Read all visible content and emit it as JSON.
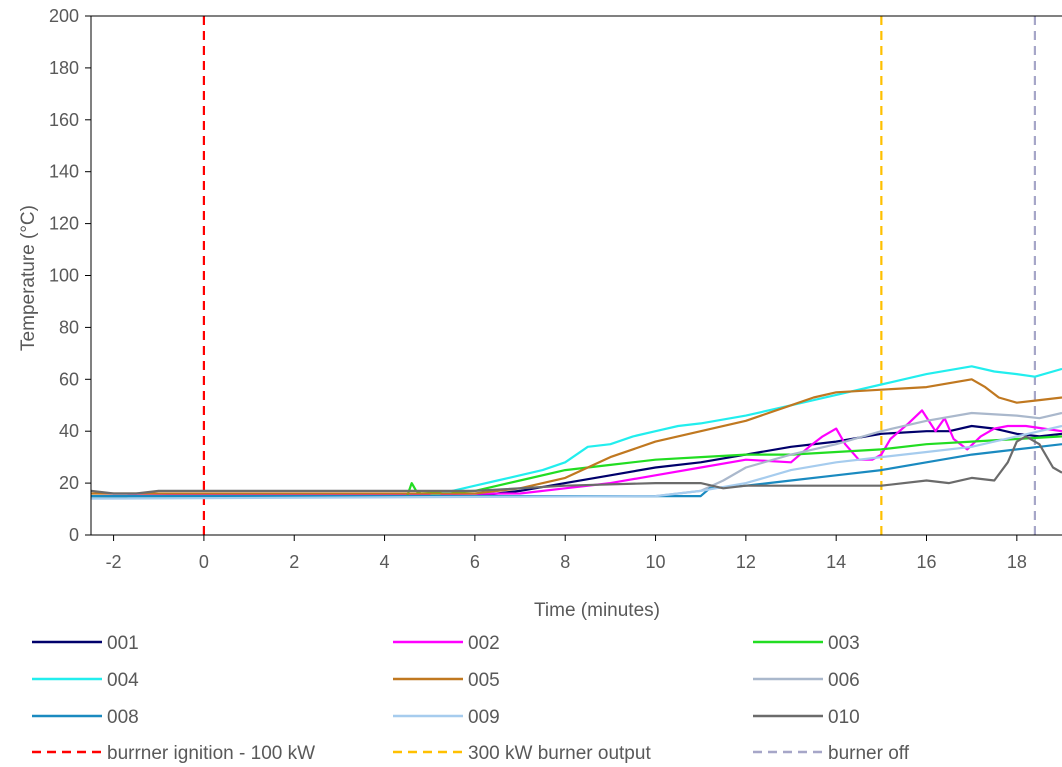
{
  "chart_data": {
    "type": "line",
    "xlabel": "Time (minutes)",
    "ylabel": "Temperature (°C)",
    "xlim": [
      -2.5,
      19
    ],
    "ylim": [
      0,
      200
    ],
    "x_ticks": [
      "-2",
      "0",
      "2",
      "4",
      "6",
      "8",
      "10",
      "12",
      "14",
      "16",
      "18"
    ],
    "x_tick_values": [
      -2,
      0,
      2,
      4,
      6,
      8,
      10,
      12,
      14,
      16,
      18
    ],
    "y_ticks": [
      "0",
      "20",
      "40",
      "60",
      "80",
      "100",
      "120",
      "140",
      "160",
      "180",
      "200"
    ],
    "y_tick_values": [
      0,
      20,
      40,
      60,
      80,
      100,
      120,
      140,
      160,
      180,
      200
    ],
    "grid": false,
    "legend_position": "bottom",
    "series": [
      {
        "name": "001",
        "color": "#00006B",
        "x": [
          -2.5,
          6,
          7,
          8,
          9,
          10,
          11,
          12,
          13,
          14,
          15,
          16,
          16.5,
          17,
          17.5,
          18,
          18.5,
          19
        ],
        "y": [
          15,
          15,
          17,
          20,
          23,
          26,
          28,
          31,
          34,
          36,
          39,
          40,
          40,
          42,
          41,
          39,
          38,
          39
        ]
      },
      {
        "name": "002",
        "color": "#FF00FF",
        "x": [
          -2.5,
          7,
          8,
          9,
          10,
          11,
          12,
          13,
          13.4,
          13.7,
          14,
          14.2,
          14.5,
          14.8,
          15,
          15.2,
          15.4,
          15.6,
          15.9,
          16.2,
          16.4,
          16.6,
          16.9,
          17.2,
          17.5,
          17.8,
          18.2,
          18.6,
          19
        ],
        "y": [
          15,
          16,
          18,
          20,
          23,
          26,
          29,
          28,
          34,
          38,
          41,
          35,
          29,
          29,
          31,
          37,
          40,
          43,
          48,
          40,
          45,
          37,
          33,
          38,
          41,
          42,
          42,
          41,
          40
        ]
      },
      {
        "name": "003",
        "color": "#22DD22",
        "x": [
          -2.5,
          4.5,
          4.6,
          4.7,
          4.8,
          6,
          7,
          8,
          9,
          10,
          11,
          12,
          13,
          14,
          15,
          16,
          17,
          18,
          19
        ],
        "y": [
          15,
          15,
          20,
          17,
          16,
          17,
          21,
          25,
          27,
          29,
          30,
          31,
          31,
          32,
          33,
          35,
          36,
          37,
          38
        ]
      },
      {
        "name": "004",
        "color": "#22EEEE",
        "x": [
          -2.5,
          5,
          5.5,
          6,
          6.5,
          7,
          7.5,
          8,
          8.5,
          9,
          9.5,
          10,
          10.5,
          11,
          12,
          13,
          14,
          15,
          16,
          17,
          17.5,
          18,
          18.4,
          19
        ],
        "y": [
          15,
          15,
          17,
          19,
          21,
          23,
          25,
          28,
          34,
          35,
          38,
          40,
          42,
          43,
          46,
          50,
          54,
          58,
          62,
          65,
          63,
          62,
          61,
          64
        ]
      },
      {
        "name": "005",
        "color": "#C07820",
        "x": [
          -2.5,
          6,
          7,
          8,
          9,
          10,
          11,
          12,
          13,
          13.5,
          14,
          15,
          16,
          17,
          17.3,
          17.6,
          18,
          18.5,
          19
        ],
        "y": [
          16,
          16,
          18,
          22,
          30,
          36,
          40,
          44,
          50,
          53,
          55,
          56,
          57,
          60,
          57,
          53,
          51,
          52,
          53
        ]
      },
      {
        "name": "006",
        "color": "#AAB8CC",
        "x": [
          -2.5,
          10,
          11,
          11.5,
          12,
          13,
          14,
          15,
          16,
          17,
          18,
          18.5,
          19
        ],
        "y": [
          15,
          15,
          17,
          21,
          26,
          31,
          35,
          40,
          44,
          47,
          46,
          45,
          47
        ]
      },
      {
        "name": "008",
        "color": "#1A8AC0",
        "x": [
          -2.5,
          11,
          11.2,
          12,
          13,
          14,
          15,
          16,
          17,
          18,
          18.5,
          19
        ],
        "y": [
          15,
          15,
          18,
          19,
          21,
          23,
          25,
          28,
          31,
          33,
          34,
          35
        ]
      },
      {
        "name": "009",
        "color": "#A6CCEE",
        "x": [
          -2.5,
          10,
          11,
          12,
          13,
          14,
          15,
          16,
          17,
          17.5,
          18,
          18.5,
          19
        ],
        "y": [
          14,
          15,
          17,
          20,
          25,
          28,
          30,
          32,
          34,
          36,
          38,
          40,
          42
        ]
      },
      {
        "name": "010",
        "color": "#6B6B6B",
        "x": [
          -2.5,
          -2,
          -1.5,
          -1,
          0,
          1,
          2,
          4,
          6,
          8,
          10,
          11,
          11.5,
          12,
          13,
          14,
          15,
          16,
          16.5,
          17,
          17.5,
          17.8,
          18,
          18.2,
          18.5,
          18.8,
          19
        ],
        "y": [
          17,
          16,
          16,
          17,
          17,
          17,
          17,
          17,
          17,
          19,
          20,
          20,
          18,
          19,
          19,
          19,
          19,
          21,
          20,
          22,
          21,
          28,
          36,
          38,
          35,
          26,
          24
        ]
      }
    ],
    "reference_lines": [
      {
        "name": "burrner ignition - 100 kW",
        "x": 0,
        "color": "#FF0000"
      },
      {
        "name": "300 kW burner output",
        "x": 15,
        "color": "#FFC000"
      },
      {
        "name": "burner off",
        "x": 18.4,
        "color": "#A6A6C8"
      }
    ]
  }
}
